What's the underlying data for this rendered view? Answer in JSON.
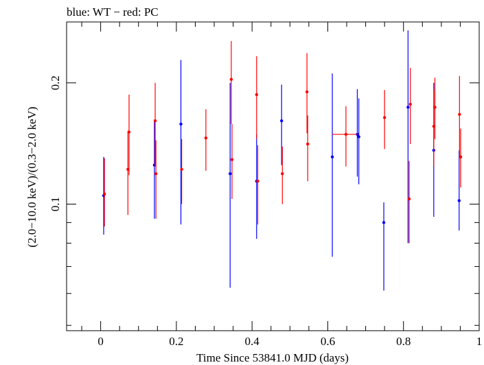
{
  "chart_data": {
    "type": "scatter",
    "title": "blue: WT − red: PC",
    "xlabel": "Time Since 53841.0 MJD (days)",
    "ylabel": "(2.0−10.0 keV)/(0.3−2.0 keV)",
    "xlim": [
      -0.09,
      1.0
    ],
    "ylim": [
      0.0485,
      0.2833
    ],
    "yscale": "log",
    "x_ticks": [
      "0",
      "0.2",
      "0.4",
      "0.6",
      "0.8",
      "1"
    ],
    "y_ticks": [
      "0.1",
      "0.2"
    ],
    "grid": false,
    "series": [
      {
        "color": "#0000ff",
        "points": [
          {
            "x": 0.008,
            "y": 0.105,
            "ylo": 0.084,
            "yhi": 0.131
          },
          {
            "x": 0.142,
            "y": 0.125,
            "ylo": 0.092,
            "yhi": 0.162
          },
          {
            "x": 0.212,
            "y": 0.158,
            "ylo": 0.089,
            "yhi": 0.228
          },
          {
            "x": 0.342,
            "y": 0.119,
            "ylo": 0.062,
            "yhi": 0.2
          },
          {
            "x": 0.412,
            "y": 0.114,
            "ylo": 0.082,
            "yhi": 0.149
          },
          {
            "x": 0.478,
            "y": 0.161,
            "ylo": 0.125,
            "yhi": 0.198
          },
          {
            "x": 0.612,
            "y": 0.131,
            "ylo": 0.074,
            "yhi": 0.211
          },
          {
            "x": 0.678,
            "y": 0.149,
            "ylo": 0.117,
            "yhi": 0.193
          },
          {
            "x": 0.682,
            "y": 0.147,
            "ylo": 0.112,
            "yhi": 0.183
          },
          {
            "x": 0.748,
            "y": 0.09,
            "ylo": 0.061,
            "yhi": 0.101
          },
          {
            "x": 0.812,
            "y": 0.174,
            "ylo": 0.08,
            "yhi": 0.27
          },
          {
            "x": 0.88,
            "y": 0.136,
            "ylo": 0.093,
            "yhi": 0.2
          },
          {
            "x": 0.947,
            "y": 0.102,
            "ylo": 0.086,
            "yhi": 0.136
          }
        ]
      },
      {
        "color": "#ff0000",
        "points": [
          {
            "x": 0.01,
            "y": 0.106,
            "ylo": 0.088,
            "yhi": 0.13
          },
          {
            "x": 0.072,
            "y": 0.122,
            "ylo": 0.094,
            "yhi": 0.152
          },
          {
            "x": 0.075,
            "y": 0.151,
            "ylo": 0.118,
            "yhi": 0.187
          },
          {
            "x": 0.144,
            "y": 0.161,
            "ylo": 0.124,
            "yhi": 0.2
          },
          {
            "x": 0.146,
            "y": 0.119,
            "ylo": 0.092,
            "yhi": 0.144
          },
          {
            "x": 0.214,
            "y": 0.122,
            "ylo": 0.1,
            "yhi": 0.145
          },
          {
            "x": 0.278,
            "y": 0.146,
            "ylo": 0.121,
            "yhi": 0.172
          },
          {
            "x": 0.345,
            "y": 0.204,
            "ylo": 0.158,
            "yhi": 0.254
          },
          {
            "x": 0.347,
            "y": 0.129,
            "ylo": 0.103,
            "yhi": 0.158
          },
          {
            "x": 0.412,
            "y": 0.187,
            "ylo": 0.145,
            "yhi": 0.233
          },
          {
            "x": 0.415,
            "y": 0.114,
            "ylo": 0.089,
            "yhi": 0.14
          },
          {
            "x": 0.48,
            "y": 0.119,
            "ylo": 0.1,
            "yhi": 0.139
          },
          {
            "x": 0.545,
            "y": 0.19,
            "ylo": 0.15,
            "yhi": 0.237
          },
          {
            "x": 0.547,
            "y": 0.141,
            "ylo": 0.114,
            "yhi": 0.166
          },
          {
            "x": 0.648,
            "y": 0.149,
            "ylo": 0.124,
            "yhi": 0.175,
            "xlo": 0.612,
            "xhi": 0.678
          },
          {
            "x": 0.75,
            "y": 0.164,
            "ylo": 0.137,
            "yhi": 0.192
          },
          {
            "x": 0.815,
            "y": 0.103,
            "ylo": 0.08,
            "yhi": 0.128
          },
          {
            "x": 0.818,
            "y": 0.177,
            "ylo": 0.141,
            "yhi": 0.218
          },
          {
            "x": 0.88,
            "y": 0.156,
            "ylo": 0.124,
            "yhi": 0.192
          },
          {
            "x": 0.883,
            "y": 0.174,
            "ylo": 0.145,
            "yhi": 0.206
          },
          {
            "x": 0.948,
            "y": 0.167,
            "ylo": 0.13,
            "yhi": 0.208
          },
          {
            "x": 0.951,
            "y": 0.131,
            "ylo": 0.11,
            "yhi": 0.154
          }
        ]
      }
    ]
  }
}
